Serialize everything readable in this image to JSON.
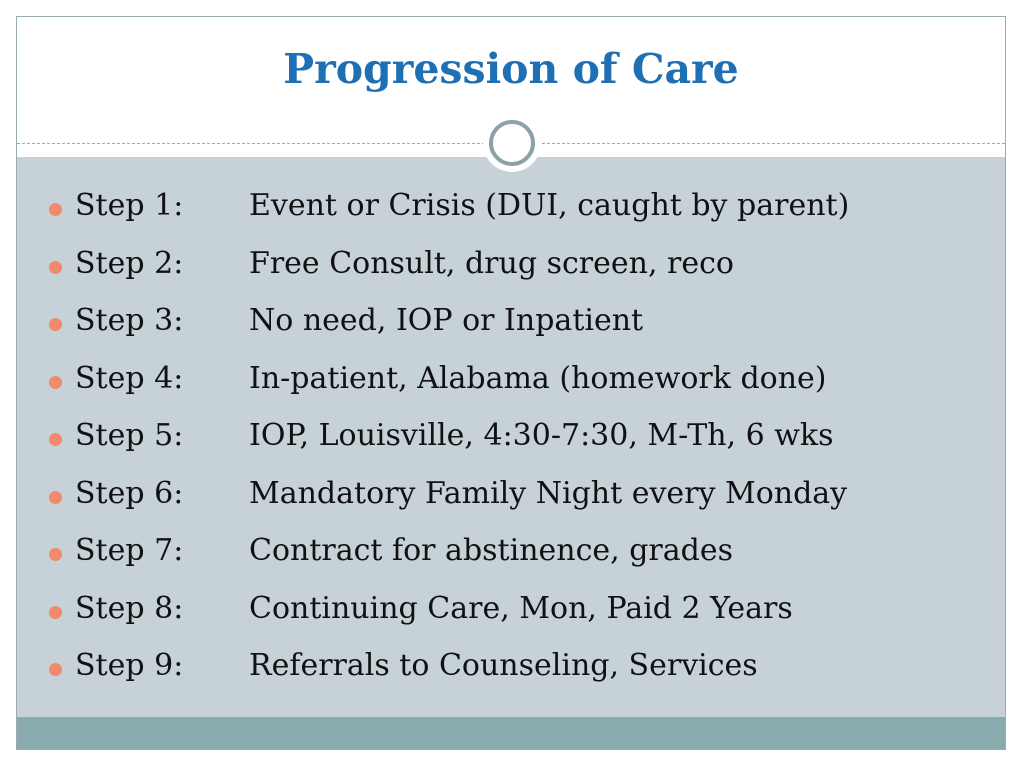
{
  "slide": {
    "title": "Progression of Care",
    "steps": [
      {
        "label": "Step 1:",
        "text": "Event or Crisis (DUI, caught by parent)"
      },
      {
        "label": "Step 2:",
        "text": "Free Consult, drug screen, reco"
      },
      {
        "label": "Step 3:",
        "text": "No need, IOP or Inpatient"
      },
      {
        "label": "Step 4:",
        "text": "In-patient, Alabama (homework done)"
      },
      {
        "label": "Step 5:",
        "text": "IOP, Louisville, 4:30-7:30, M-Th, 6 wks"
      },
      {
        "label": "Step 6:",
        "text": "Mandatory Family Night every Monday"
      },
      {
        "label": "Step 7:",
        "text": "Contract for abstinence, grades"
      },
      {
        "label": "Step 8:",
        "text": "Continuing Care, Mon, Paid 2 Years"
      },
      {
        "label": "Step 9:",
        "text": "Referrals to Counseling, Services"
      }
    ]
  },
  "colors": {
    "title": "#1f6fb4",
    "content_background": "#c6d2d8",
    "bottom_band": "#8aabad",
    "bullet": "#f08a6a"
  }
}
